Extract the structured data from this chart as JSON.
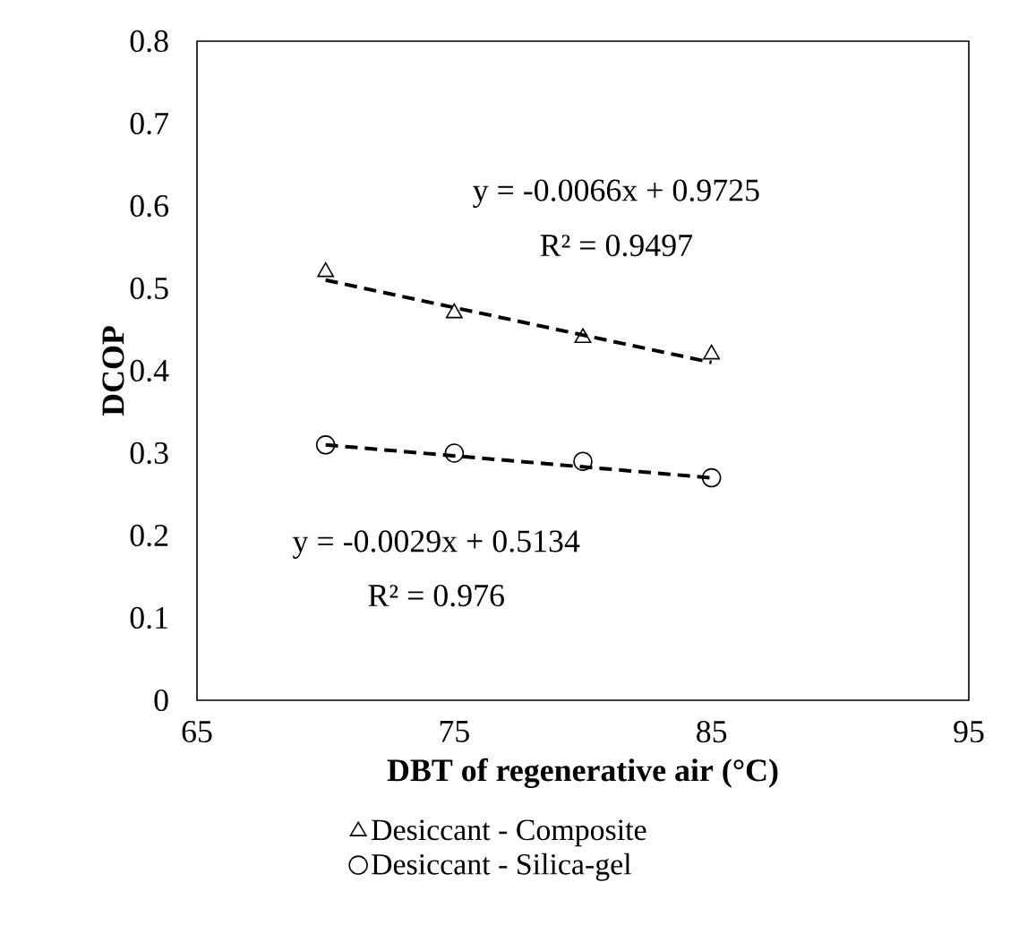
{
  "chart_data": {
    "type": "scatter",
    "xlabel": "DBT of regenerative air (°C)",
    "ylabel": "DCOP",
    "xlim": [
      65,
      95
    ],
    "xticks": [
      65,
      75,
      85,
      95
    ],
    "ylim": [
      0,
      0.8
    ],
    "yticks": [
      0,
      0.1,
      0.2,
      0.3,
      0.4,
      0.5,
      0.6,
      0.7,
      0.8
    ],
    "grid": false,
    "legend": "bottom",
    "series": [
      {
        "name": "Desiccant - Composite",
        "marker": "triangle",
        "color": "#000000",
        "x": [
          70,
          75,
          80,
          85
        ],
        "values": [
          0.52,
          0.47,
          0.44,
          0.42
        ]
      },
      {
        "name": "Desiccant - Silica-gel",
        "marker": "circle",
        "color": "#000000",
        "x": [
          70,
          75,
          80,
          85
        ],
        "values": [
          0.31,
          0.3,
          0.29,
          0.27
        ]
      },
      {
        "type": "line",
        "line_style": "dashed",
        "marker": "none",
        "color": "#000000",
        "x": [
          70,
          85
        ],
        "values": [
          0.51,
          0.41
        ]
      },
      {
        "type": "line",
        "line_style": "dashed",
        "marker": "none",
        "color": "#000000",
        "x": [
          70,
          85
        ],
        "values": [
          0.31,
          0.27
        ]
      }
    ],
    "annotations": [
      "y = -0.0066x + 0.9725",
      "R² = 0.9497",
      "y = -0.0029x + 0.5134",
      "R² = 0.976"
    ]
  }
}
